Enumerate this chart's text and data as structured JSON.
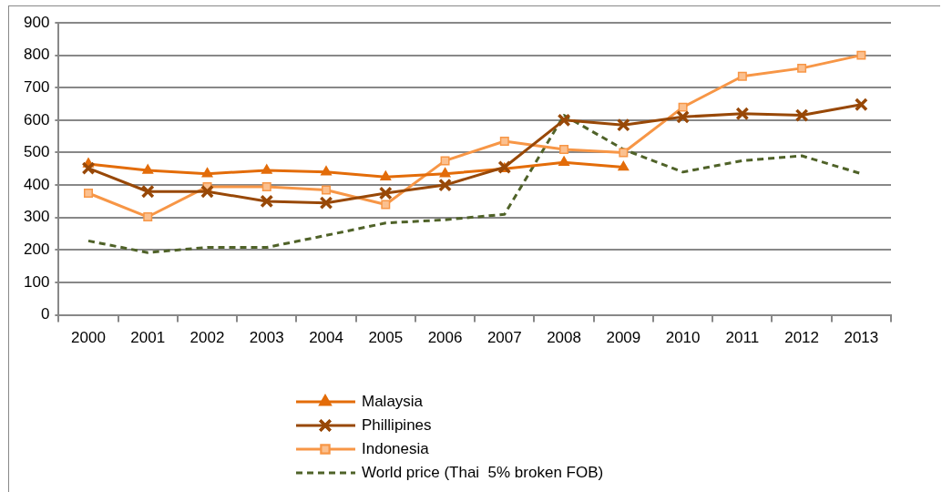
{
  "chart_data": {
    "type": "line",
    "categories": [
      "2000",
      "2001",
      "2002",
      "2003",
      "2004",
      "2005",
      "2006",
      "2007",
      "2008",
      "2009",
      "2010",
      "2011",
      "2012",
      "2013"
    ],
    "series": [
      {
        "name": "Malaysia",
        "color": "#e36c09",
        "marker": "triangle",
        "values": [
          465,
          445,
          435,
          445,
          440,
          425,
          435,
          450,
          470,
          455,
          null,
          null,
          null,
          null
        ]
      },
      {
        "name": "Phillipines",
        "color": "#984807",
        "marker": "cross",
        "values": [
          452,
          380,
          380,
          350,
          345,
          375,
          400,
          455,
          600,
          585,
          610,
          620,
          615,
          648
        ]
      },
      {
        "name": "Indonesia",
        "color": "#f79646",
        "marker": "square",
        "values": [
          375,
          302,
          395,
          395,
          385,
          340,
          475,
          535,
          510,
          500,
          640,
          735,
          760,
          800
        ]
      },
      {
        "name": "World price (Thai  5% broken FOB)",
        "color": "#4f6228",
        "marker": "none",
        "line_style": "dashed",
        "values": [
          228,
          192,
          208,
          208,
          245,
          283,
          293,
          310,
          615,
          510,
          440,
          475,
          490,
          435
        ]
      }
    ],
    "ylim": [
      0,
      900
    ],
    "yticks": [
      0,
      100,
      200,
      300,
      400,
      500,
      600,
      700,
      800,
      900
    ],
    "grid": "y",
    "legend": "bottom"
  }
}
